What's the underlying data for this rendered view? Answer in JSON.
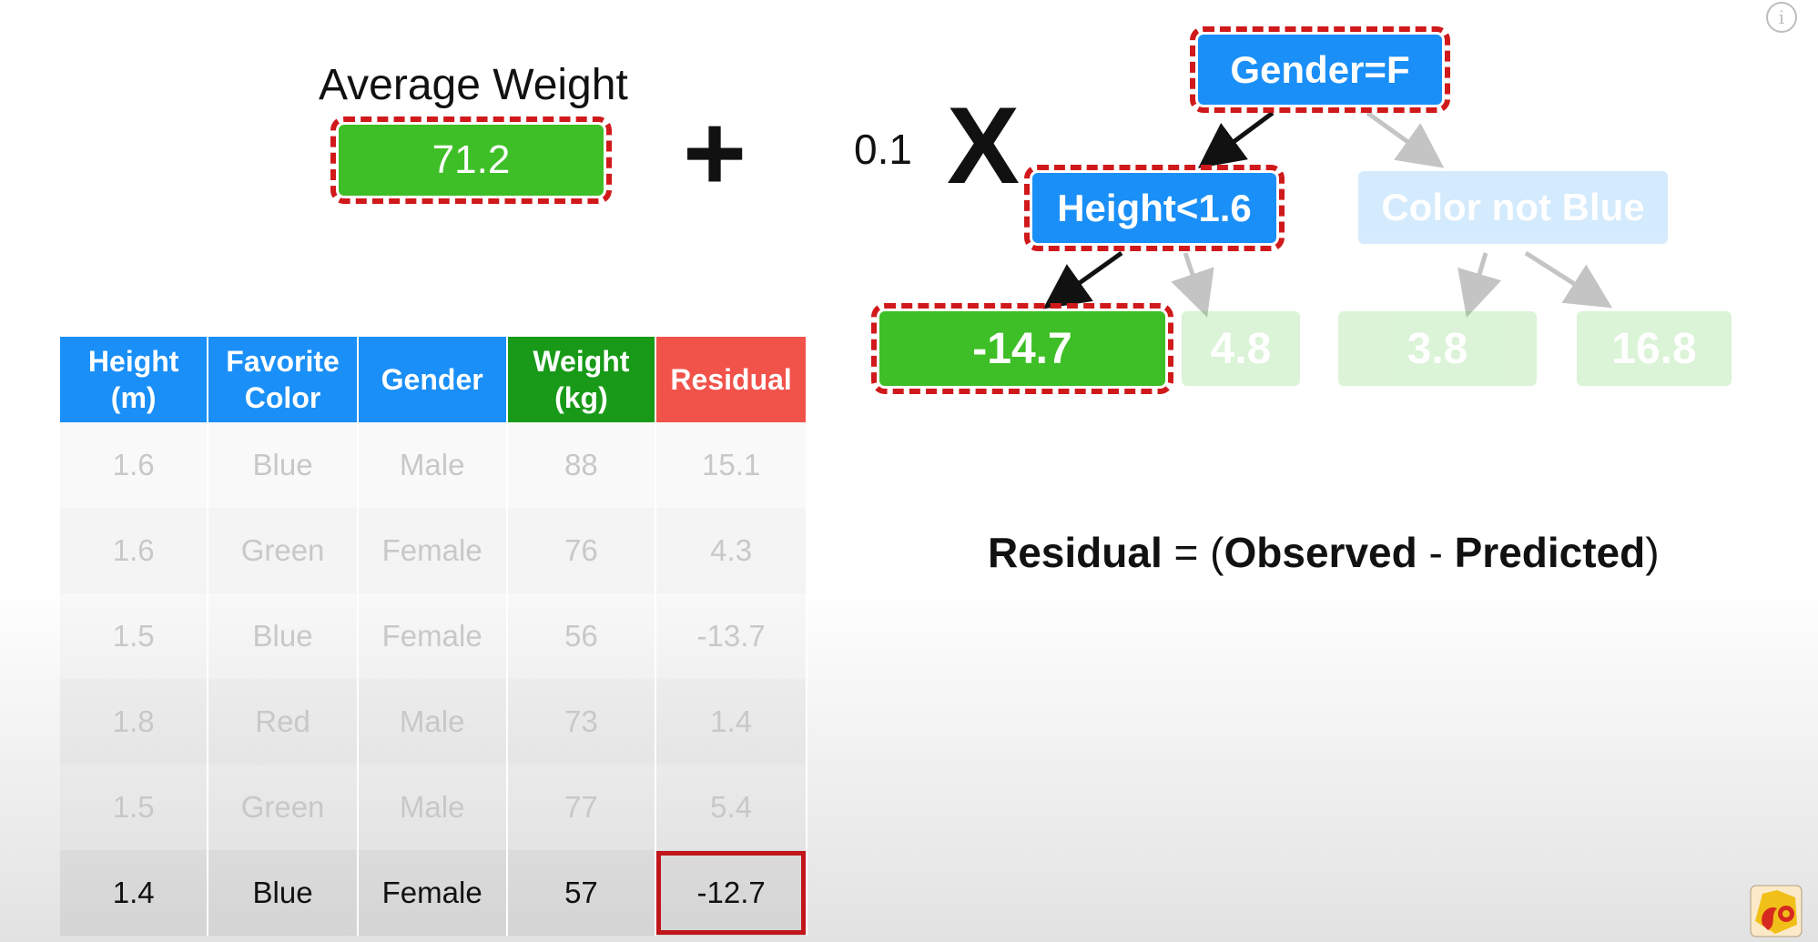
{
  "header": {
    "avg_label": "Average Weight",
    "avg_value": "71.2",
    "plus": "+",
    "learning_rate": "0.1",
    "times": "X"
  },
  "tree": {
    "root": "Gender=F",
    "left": "Height<1.6",
    "right": "Color not Blue",
    "leaves": [
      "-14.7",
      "4.8",
      "3.8",
      "16.8"
    ]
  },
  "formula": {
    "left": "Residual",
    "eq": "=",
    "open": "(",
    "observed": "Observed",
    "minus": "-",
    "predicted": "Predicted",
    "close": ")"
  },
  "table": {
    "headers": [
      {
        "line1": "Height",
        "line2": "(m)"
      },
      {
        "line1": "Favorite",
        "line2": "Color"
      },
      {
        "line1": "Gender",
        "line2": ""
      },
      {
        "line1": "Weight",
        "line2": "(kg)"
      },
      {
        "line1": "Residual",
        "line2": ""
      }
    ],
    "rows": [
      [
        "1.6",
        "Blue",
        "Male",
        "88",
        "15.1"
      ],
      [
        "1.6",
        "Green",
        "Female",
        "76",
        "4.3"
      ],
      [
        "1.5",
        "Blue",
        "Female",
        "56",
        "-13.7"
      ],
      [
        "1.8",
        "Red",
        "Male",
        "73",
        "1.4"
      ],
      [
        "1.5",
        "Green",
        "Male",
        "77",
        "5.4"
      ],
      [
        "1.4",
        "Blue",
        "Female",
        "57",
        "-12.7"
      ]
    ]
  },
  "colors": {
    "node_blue": "#1a8ff7",
    "leaf_green": "#3fbf27",
    "highlight_red": "#d0191b",
    "header_green": "#189a18",
    "header_red": "#f1524a"
  },
  "icons": [
    "info-icon",
    "statquest-logo"
  ]
}
